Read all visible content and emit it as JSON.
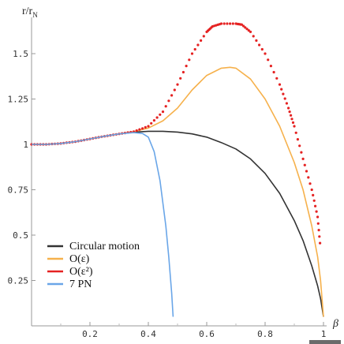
{
  "chart_data": {
    "type": "line",
    "ylabel": "r/r",
    "ylabel_sub": "N",
    "xlabel": "β",
    "xlim": [
      0,
      1
    ],
    "ylim": [
      0,
      1.7
    ],
    "x_ticks": [
      "0.2",
      "0.4",
      "0.6",
      "0.8",
      "1"
    ],
    "y_ticks": [
      "1.5",
      "1.25",
      "1",
      "0.75",
      "0.5",
      "0.25"
    ],
    "legend_position": "bottom-left",
    "series": [
      {
        "name": "Circular motion",
        "color": "#333333",
        "style": "solid",
        "x": [
          0,
          0.05,
          0.1,
          0.15,
          0.2,
          0.25,
          0.3,
          0.35,
          0.4,
          0.45,
          0.5,
          0.55,
          0.6,
          0.65,
          0.7,
          0.75,
          0.8,
          0.85,
          0.9,
          0.93,
          0.96,
          0.98,
          0.99,
          1.0
        ],
        "y": [
          1.0,
          1.0,
          1.005,
          1.015,
          1.03,
          1.045,
          1.058,
          1.067,
          1.072,
          1.072,
          1.068,
          1.058,
          1.04,
          1.01,
          0.975,
          0.92,
          0.84,
          0.73,
          0.58,
          0.47,
          0.33,
          0.22,
          0.15,
          0.05
        ]
      },
      {
        "name": "O(ε)",
        "color": "#f6b14c",
        "style": "solid",
        "x": [
          0,
          0.05,
          0.1,
          0.15,
          0.2,
          0.25,
          0.3,
          0.35,
          0.4,
          0.45,
          0.5,
          0.55,
          0.6,
          0.65,
          0.68,
          0.7,
          0.75,
          0.8,
          0.85,
          0.9,
          0.93,
          0.96,
          0.98,
          0.99,
          1.0
        ],
        "y": [
          1.0,
          1.0,
          1.005,
          1.015,
          1.03,
          1.045,
          1.058,
          1.07,
          1.09,
          1.13,
          1.2,
          1.3,
          1.38,
          1.42,
          1.425,
          1.42,
          1.36,
          1.25,
          1.1,
          0.9,
          0.75,
          0.55,
          0.38,
          0.25,
          0.05
        ]
      },
      {
        "name": "O(ε²)",
        "color": "#e52222",
        "style": "dotted",
        "x": [
          0,
          0.05,
          0.1,
          0.15,
          0.2,
          0.25,
          0.3,
          0.35,
          0.4,
          0.45,
          0.5,
          0.55,
          0.6,
          0.62,
          0.65,
          0.7,
          0.72,
          0.75,
          0.8,
          0.85,
          0.88,
          0.9,
          0.93,
          0.96,
          0.98,
          0.99
        ],
        "y": [
          1.0,
          1.0,
          1.005,
          1.015,
          1.03,
          1.045,
          1.058,
          1.07,
          1.1,
          1.18,
          1.33,
          1.5,
          1.62,
          1.65,
          1.665,
          1.665,
          1.66,
          1.62,
          1.5,
          1.33,
          1.2,
          1.1,
          0.92,
          0.75,
          0.6,
          0.42
        ]
      },
      {
        "name": "7 PN",
        "color": "#6aa6e8",
        "style": "solid",
        "x": [
          0,
          0.05,
          0.1,
          0.15,
          0.2,
          0.25,
          0.3,
          0.35,
          0.38,
          0.4,
          0.42,
          0.44,
          0.46,
          0.47,
          0.48,
          0.485
        ],
        "y": [
          1.0,
          1.0,
          1.005,
          1.015,
          1.03,
          1.045,
          1.058,
          1.065,
          1.06,
          1.04,
          0.96,
          0.8,
          0.55,
          0.38,
          0.18,
          0.05
        ]
      }
    ]
  }
}
